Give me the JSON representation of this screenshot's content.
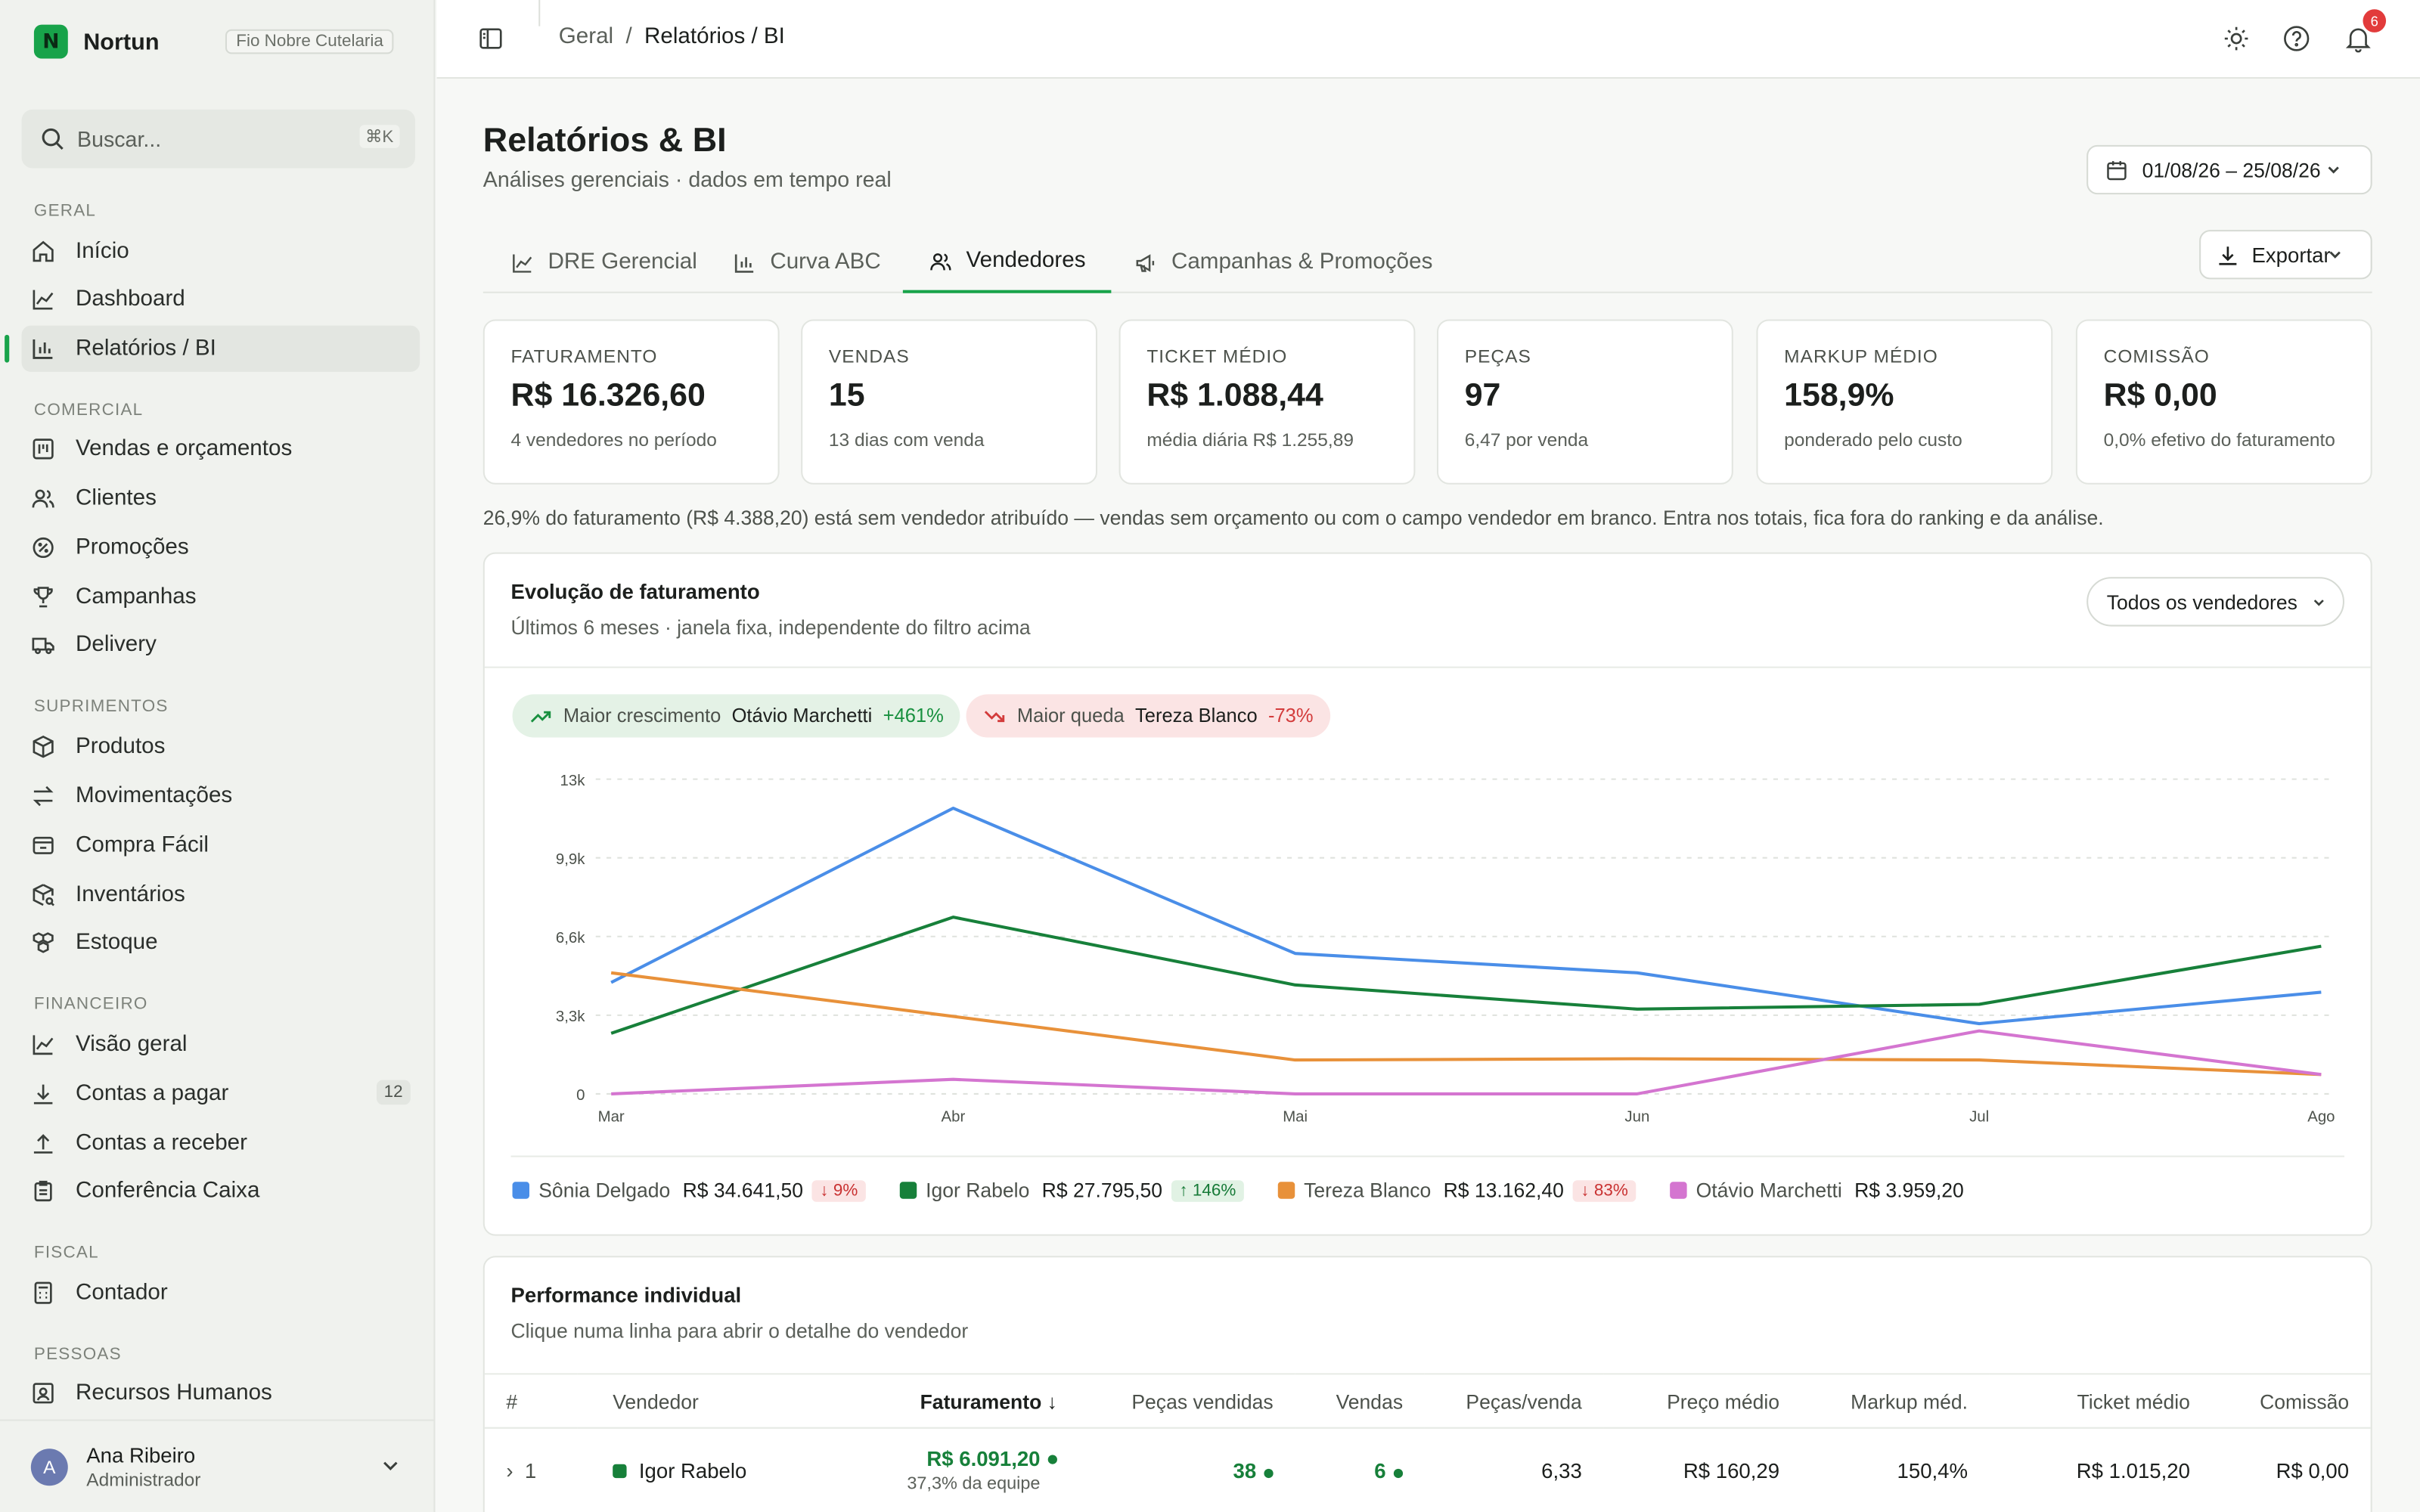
{
  "brand": {
    "name": "Nortun",
    "company": "Fio Nobre Cutelaria"
  },
  "search": {
    "placeholder": "Buscar...",
    "shortcut": "⌘K"
  },
  "sidebar": {
    "sections": [
      {
        "label": "Geral",
        "items": [
          {
            "label": "Início",
            "icon": "home-icon"
          },
          {
            "label": "Dashboard",
            "icon": "line-chart-icon"
          },
          {
            "label": "Relatórios / BI",
            "icon": "bar-chart-icon",
            "active": true
          }
        ]
      },
      {
        "label": "Comercial",
        "items": [
          {
            "label": "Vendas e orçamentos",
            "icon": "kanban-icon"
          },
          {
            "label": "Clientes",
            "icon": "users-icon"
          },
          {
            "label": "Promoções",
            "icon": "percent-badge-icon"
          },
          {
            "label": "Campanhas",
            "icon": "trophy-icon"
          },
          {
            "label": "Delivery",
            "icon": "truck-icon"
          }
        ]
      },
      {
        "label": "Suprimentos",
        "items": [
          {
            "label": "Produtos",
            "icon": "box-icon"
          },
          {
            "label": "Movimentações",
            "icon": "arrows-icon"
          },
          {
            "label": "Compra Fácil",
            "icon": "wallet-icon"
          },
          {
            "label": "Inventários",
            "icon": "package-search-icon"
          },
          {
            "label": "Estoque",
            "icon": "boxes-icon"
          }
        ]
      },
      {
        "label": "Financeiro",
        "items": [
          {
            "label": "Visão geral",
            "icon": "trend-icon"
          },
          {
            "label": "Contas a pagar",
            "icon": "download-icon",
            "badge": "12"
          },
          {
            "label": "Contas a receber",
            "icon": "upload-icon"
          },
          {
            "label": "Conferência Caixa",
            "icon": "clipboard-icon"
          }
        ]
      },
      {
        "label": "Fiscal",
        "items": [
          {
            "label": "Contador",
            "icon": "calculator-icon"
          }
        ]
      },
      {
        "label": "Pessoas",
        "items": [
          {
            "label": "Recursos Humanos",
            "icon": "id-card-icon"
          }
        ]
      }
    ]
  },
  "user": {
    "initial": "A",
    "name": "Ana Ribeiro",
    "role": "Administrador"
  },
  "breadcrumb": {
    "parent": "Geral",
    "separator": "/",
    "current": "Relatórios / BI"
  },
  "notifications": {
    "count": "6"
  },
  "page": {
    "title": "Relatórios & BI",
    "subtitle": "Análises gerenciais · dados em tempo real",
    "date_range": "01/08/26 – 25/08/26",
    "export_label": "Exportar"
  },
  "tabs": [
    {
      "label": "DRE Gerencial"
    },
    {
      "label": "Curva ABC"
    },
    {
      "label": "Vendedores",
      "active": true
    },
    {
      "label": "Campanhas & Promoções"
    }
  ],
  "kpis": [
    {
      "label": "FATURAMENTO",
      "value": "R$ 16.326,60",
      "sub": "4 vendedores no período"
    },
    {
      "label": "VENDAS",
      "value": "15",
      "sub": "13 dias com venda"
    },
    {
      "label": "TICKET MÉDIO",
      "value": "R$ 1.088,44",
      "sub": "média diária R$ 1.255,89"
    },
    {
      "label": "PEÇAS",
      "value": "97",
      "sub": "6,47 por venda"
    },
    {
      "label": "MARKUP MÉDIO",
      "value": "158,9%",
      "sub": "ponderado pelo custo"
    },
    {
      "label": "COMISSÃO",
      "value": "R$ 0,00",
      "sub": "0,0% efetivo do faturamento"
    }
  ],
  "note": "26,9% do faturamento (R$ 4.388,20) está sem vendedor atribuído — vendas sem orçamento ou com o campo vendedor em branco. Entra nos totais, fica fora do ranking e da análise.",
  "evolution": {
    "title": "Evolução de faturamento",
    "subtitle": "Últimos 6 meses · janela fixa, independente do filtro acima",
    "filter": "Todos os vendedores",
    "best": {
      "label": "Maior crescimento",
      "name": "Otávio Marchetti",
      "pct": "+461%"
    },
    "worst": {
      "label": "Maior queda",
      "name": "Tereza Blanco",
      "pct": "-73%"
    }
  },
  "chart_data": {
    "type": "line",
    "categories": [
      "Mar",
      "Abr",
      "Mai",
      "Jun",
      "Jul",
      "Ago"
    ],
    "y_ticks": [
      "0",
      "3,3k",
      "6,6k",
      "9,9k",
      "13k"
    ],
    "ylim": [
      0,
      13000
    ],
    "grid": true,
    "legend": "bottom",
    "series": [
      {
        "name": "Sônia Delgado",
        "color": "#4a8ee8",
        "values": [
          4600,
          11800,
          5800,
          5000,
          2900,
          4200
        ],
        "total": "R$ 34.641,50",
        "change": "9%",
        "dir": "down"
      },
      {
        "name": "Igor Rabelo",
        "color": "#17803a",
        "values": [
          2500,
          7300,
          4500,
          3500,
          3700,
          6100
        ],
        "total": "R$ 27.795,50",
        "change": "146%",
        "dir": "up"
      },
      {
        "name": "Tereza Blanco",
        "color": "#e8913a",
        "values": [
          5000,
          3200,
          1400,
          1450,
          1400,
          800
        ],
        "total": "R$ 13.162,40",
        "change": "83%",
        "dir": "down"
      },
      {
        "name": "Otávio Marchetti",
        "color": "#d475d0",
        "values": [
          0,
          600,
          0,
          0,
          2600,
          800
        ],
        "total": "R$ 3.959,20",
        "change": "",
        "dir": ""
      }
    ]
  },
  "performance": {
    "title": "Performance individual",
    "subtitle": "Clique numa linha para abrir o detalhe do vendedor",
    "columns": [
      "#",
      "Vendedor",
      "Faturamento",
      "Peças vendidas",
      "Vendas",
      "Peças/venda",
      "Preço médio",
      "Markup méd.",
      "Ticket médio",
      "Comissão"
    ],
    "rows": [
      {
        "rank": "1",
        "name": "Igor Rabelo",
        "revenue": "R$ 6.091,20",
        "share": "37,3% da equipe",
        "pieces": "38",
        "sales": "6",
        "per_sale": "6,33",
        "avg_price": "R$ 160,29",
        "markup": "150,4%",
        "ticket": "R$ 1.015,20",
        "commission": "R$ 0,00"
      }
    ]
  }
}
